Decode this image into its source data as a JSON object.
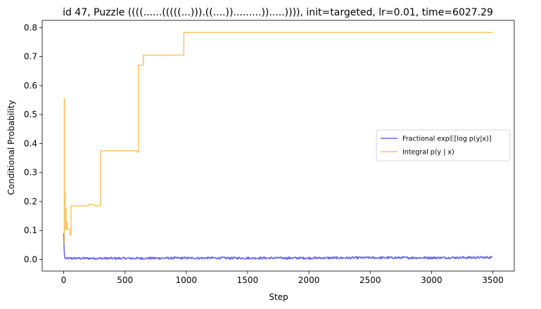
{
  "chart_data": {
    "type": "line",
    "title": "id 47, Puzzle ((((......(((((...))).((....)).........)).....)))), init=targeted, lr=0.01, time=6027.29",
    "xlabel": "Step",
    "ylabel": "Conditional Probability",
    "xlim": [
      -175,
      3675
    ],
    "ylim": [
      -0.04,
      0.825
    ],
    "xticks": [
      0,
      500,
      1000,
      1500,
      2000,
      2500,
      3000,
      3500
    ],
    "yticks": [
      0.0,
      0.1,
      0.2,
      0.3,
      0.4,
      0.5,
      0.6,
      0.7,
      0.8
    ],
    "ytick_labels": [
      "0.0",
      "0.1",
      "0.2",
      "0.3",
      "0.4",
      "0.5",
      "0.6",
      "0.7",
      "0.8"
    ],
    "grid": false,
    "legend_position": "center-right",
    "series": [
      {
        "name": "Fractional exp𝔼[log p(y|x)]",
        "color": "#4b4bf0",
        "style": "noisy-low",
        "x": [
          0,
          3,
          6,
          10,
          50,
          200,
          500,
          1000,
          1500,
          2000,
          2500,
          3000,
          3500
        ],
        "y": [
          0.09,
          0.05,
          0.01,
          0.003,
          0.004,
          0.004,
          0.004,
          0.005,
          0.005,
          0.005,
          0.006,
          0.006,
          0.007
        ]
      },
      {
        "name": "Integral p(y | x)",
        "color": "#f5b841",
        "style": "step",
        "x": [
          0,
          5,
          8,
          10,
          13,
          16,
          20,
          25,
          30,
          40,
          50,
          60,
          100,
          200,
          250,
          300,
          550,
          600,
          610,
          650,
          700,
          980,
          3500
        ],
        "y": [
          0.06,
          0.555,
          0.1,
          0.23,
          0.11,
          0.175,
          0.105,
          0.13,
          0.105,
          0.105,
          0.085,
          0.185,
          0.185,
          0.19,
          0.185,
          0.375,
          0.375,
          0.37,
          0.67,
          0.705,
          0.705,
          0.783,
          0.783
        ]
      }
    ]
  }
}
